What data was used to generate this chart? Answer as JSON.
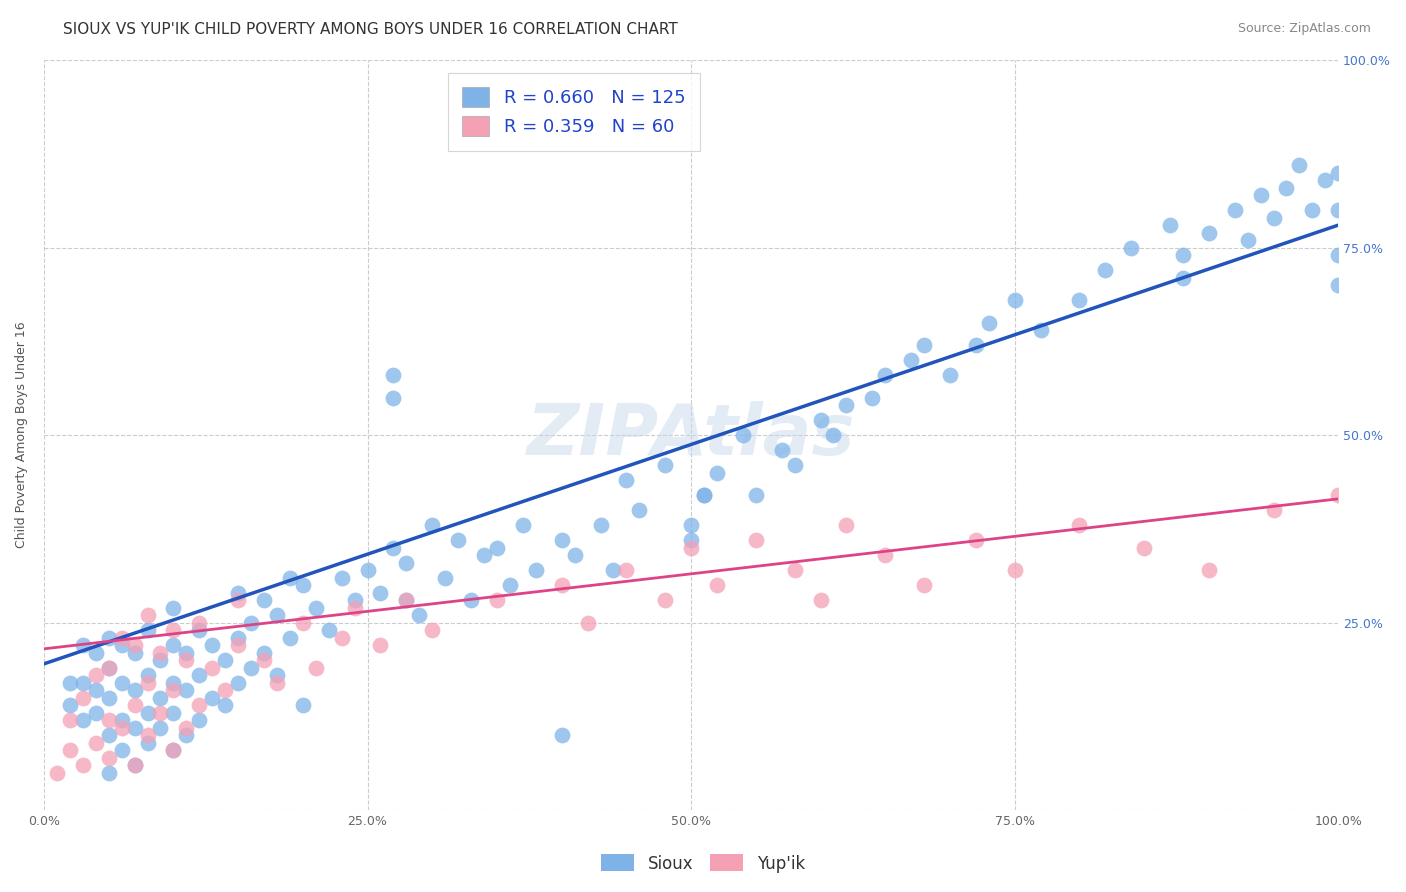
{
  "title": "SIOUX VS YUP'IK CHILD POVERTY AMONG BOYS UNDER 16 CORRELATION CHART",
  "source": "Source: ZipAtlas.com",
  "ylabel": "Child Poverty Among Boys Under 16",
  "xlim": [
    0,
    1
  ],
  "ylim": [
    0,
    1
  ],
  "xticks": [
    0.0,
    0.25,
    0.5,
    0.75,
    1.0
  ],
  "yticks": [
    0.0,
    0.25,
    0.5,
    0.75,
    1.0
  ],
  "xticklabels": [
    "0.0%",
    "25.0%",
    "50.0%",
    "75.0%",
    "100.0%"
  ],
  "ytick_right_labels": [
    "",
    "25.0%",
    "50.0%",
    "75.0%",
    "100.0%"
  ],
  "sioux_color": "#7fb3e8",
  "yupik_color": "#f4a0b5",
  "sioux_line_color": "#2255bb",
  "yupik_line_color": "#dd4488",
  "sioux_R": 0.66,
  "sioux_N": 125,
  "yupik_R": 0.359,
  "yupik_N": 60,
  "watermark": "ZIPAtlas",
  "legend_label_sioux": "Sioux",
  "legend_label_yupik": "Yup'ik",
  "sioux_line_x0": 0.0,
  "sioux_line_y0": 0.195,
  "sioux_line_x1": 1.0,
  "sioux_line_y1": 0.78,
  "yupik_line_x0": 0.0,
  "yupik_line_y0": 0.215,
  "yupik_line_x1": 1.0,
  "yupik_line_y1": 0.415,
  "sioux_x": [
    0.02,
    0.02,
    0.03,
    0.03,
    0.03,
    0.04,
    0.04,
    0.04,
    0.05,
    0.05,
    0.05,
    0.05,
    0.05,
    0.06,
    0.06,
    0.06,
    0.06,
    0.07,
    0.07,
    0.07,
    0.07,
    0.08,
    0.08,
    0.08,
    0.08,
    0.09,
    0.09,
    0.09,
    0.1,
    0.1,
    0.1,
    0.1,
    0.1,
    0.11,
    0.11,
    0.11,
    0.12,
    0.12,
    0.12,
    0.13,
    0.13,
    0.14,
    0.14,
    0.15,
    0.15,
    0.15,
    0.16,
    0.16,
    0.17,
    0.17,
    0.18,
    0.18,
    0.19,
    0.19,
    0.2,
    0.2,
    0.21,
    0.22,
    0.23,
    0.24,
    0.25,
    0.26,
    0.27,
    0.28,
    0.28,
    0.29,
    0.3,
    0.31,
    0.32,
    0.33,
    0.34,
    0.35,
    0.36,
    0.37,
    0.38,
    0.4,
    0.41,
    0.43,
    0.44,
    0.45,
    0.46,
    0.48,
    0.5,
    0.51,
    0.52,
    0.54,
    0.55,
    0.57,
    0.58,
    0.6,
    0.61,
    0.62,
    0.64,
    0.65,
    0.67,
    0.68,
    0.7,
    0.72,
    0.73,
    0.75,
    0.77,
    0.8,
    0.82,
    0.84,
    0.87,
    0.88,
    0.88,
    0.9,
    0.92,
    0.93,
    0.94,
    0.95,
    0.96,
    0.97,
    0.98,
    0.99,
    1.0,
    1.0,
    1.0,
    1.0,
    0.27,
    0.27,
    0.5,
    0.51,
    0.4
  ],
  "sioux_y": [
    0.17,
    0.14,
    0.12,
    0.17,
    0.22,
    0.13,
    0.16,
    0.21,
    0.05,
    0.1,
    0.15,
    0.19,
    0.23,
    0.08,
    0.12,
    0.17,
    0.22,
    0.06,
    0.11,
    0.16,
    0.21,
    0.09,
    0.13,
    0.18,
    0.24,
    0.11,
    0.15,
    0.2,
    0.08,
    0.13,
    0.17,
    0.22,
    0.27,
    0.1,
    0.16,
    0.21,
    0.12,
    0.18,
    0.24,
    0.15,
    0.22,
    0.14,
    0.2,
    0.17,
    0.23,
    0.29,
    0.19,
    0.25,
    0.21,
    0.28,
    0.18,
    0.26,
    0.23,
    0.31,
    0.14,
    0.3,
    0.27,
    0.24,
    0.31,
    0.28,
    0.32,
    0.29,
    0.35,
    0.28,
    0.33,
    0.26,
    0.38,
    0.31,
    0.36,
    0.28,
    0.34,
    0.35,
    0.3,
    0.38,
    0.32,
    0.36,
    0.34,
    0.38,
    0.32,
    0.44,
    0.4,
    0.46,
    0.36,
    0.42,
    0.45,
    0.5,
    0.42,
    0.48,
    0.46,
    0.52,
    0.5,
    0.54,
    0.55,
    0.58,
    0.6,
    0.62,
    0.58,
    0.62,
    0.65,
    0.68,
    0.64,
    0.68,
    0.72,
    0.75,
    0.78,
    0.71,
    0.74,
    0.77,
    0.8,
    0.76,
    0.82,
    0.79,
    0.83,
    0.86,
    0.8,
    0.84,
    0.7,
    0.74,
    0.8,
    0.85,
    0.55,
    0.58,
    0.38,
    0.42,
    0.1
  ],
  "yupik_x": [
    0.01,
    0.02,
    0.02,
    0.03,
    0.03,
    0.04,
    0.04,
    0.05,
    0.05,
    0.05,
    0.06,
    0.06,
    0.07,
    0.07,
    0.07,
    0.08,
    0.08,
    0.08,
    0.09,
    0.09,
    0.1,
    0.1,
    0.1,
    0.11,
    0.11,
    0.12,
    0.12,
    0.13,
    0.14,
    0.15,
    0.15,
    0.17,
    0.18,
    0.2,
    0.21,
    0.23,
    0.24,
    0.26,
    0.28,
    0.3,
    0.35,
    0.4,
    0.42,
    0.45,
    0.48,
    0.5,
    0.52,
    0.55,
    0.58,
    0.6,
    0.62,
    0.65,
    0.68,
    0.72,
    0.75,
    0.8,
    0.85,
    0.9,
    0.95,
    1.0
  ],
  "yupik_y": [
    0.05,
    0.08,
    0.12,
    0.06,
    0.15,
    0.09,
    0.18,
    0.07,
    0.12,
    0.19,
    0.11,
    0.23,
    0.06,
    0.14,
    0.22,
    0.1,
    0.17,
    0.26,
    0.13,
    0.21,
    0.08,
    0.16,
    0.24,
    0.11,
    0.2,
    0.14,
    0.25,
    0.19,
    0.16,
    0.22,
    0.28,
    0.2,
    0.17,
    0.25,
    0.19,
    0.23,
    0.27,
    0.22,
    0.28,
    0.24,
    0.28,
    0.3,
    0.25,
    0.32,
    0.28,
    0.35,
    0.3,
    0.36,
    0.32,
    0.28,
    0.38,
    0.34,
    0.3,
    0.36,
    0.32,
    0.38,
    0.35,
    0.32,
    0.4,
    0.42
  ],
  "grid_color": "#cccccc",
  "background_color": "#ffffff",
  "title_fontsize": 11,
  "axis_label_fontsize": 9,
  "tick_fontsize": 9,
  "legend_fontsize": 13,
  "source_fontsize": 9
}
